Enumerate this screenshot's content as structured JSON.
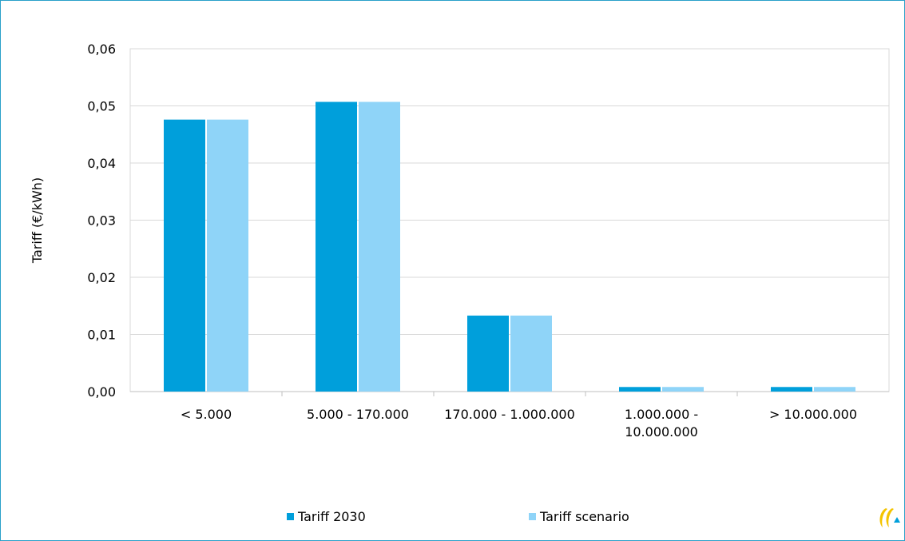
{
  "chart_data": {
    "type": "bar",
    "categories": [
      "< 5.000",
      "5.000 - 170.000",
      "170.000 - 1.000.000",
      "1.000.000 -\n10.000.000",
      "> 10.000.000"
    ],
    "series": [
      {
        "name": "Tariff 2030",
        "values": [
          0.0476,
          0.0507,
          0.0133,
          0.0008,
          0.0008
        ],
        "color": "#009fdb"
      },
      {
        "name": "Tariff scenario",
        "values": [
          0.0476,
          0.0507,
          0.0133,
          0.0008,
          0.0008
        ],
        "color": "#8fd4f8"
      }
    ],
    "ylabel": "Tariff (€/kWh)",
    "ylim": [
      0,
      0.06
    ],
    "yticks": [
      "0,00",
      "0,01",
      "0,02",
      "0,03",
      "0,04",
      "0,05",
      "0,06"
    ],
    "grid": true,
    "legend_position": "bottom"
  },
  "logo": {
    "name": "company-logo-icon"
  }
}
